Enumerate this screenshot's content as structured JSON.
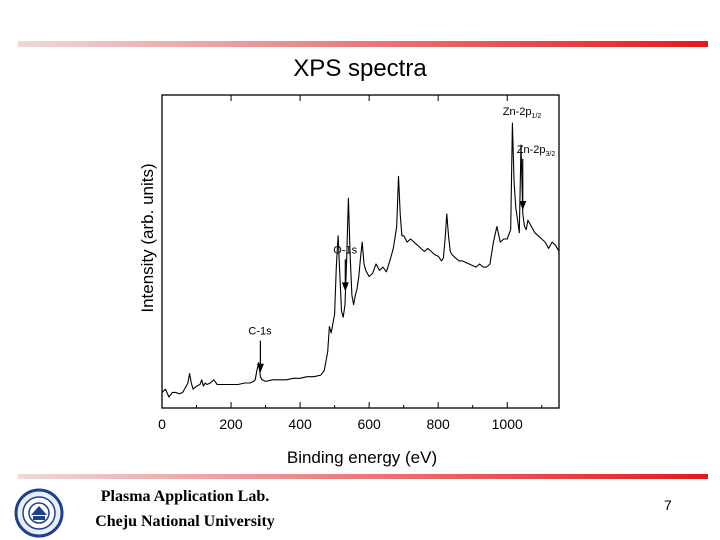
{
  "slide": {
    "title": "XPS spectra",
    "footer_line1": "Plasma Application Lab.",
    "footer_line2": "Cheju National University",
    "page_number": "7",
    "seal_icon": "university-seal-icon",
    "accent_gradient": [
      "#f0d8d8",
      "#e41a1a"
    ]
  },
  "chart_data": {
    "type": "line",
    "title": "",
    "xlabel": "Binding energy (eV)",
    "ylabel": "Intensity (arb. units)",
    "xlim": [
      0,
      1150
    ],
    "ylim": [
      0,
      100
    ],
    "xticks": [
      0,
      200,
      400,
      600,
      800,
      1000
    ],
    "yticks_shown": false,
    "grid": false,
    "series": [
      {
        "x": [
          0,
          10,
          20,
          30,
          40,
          50,
          60,
          70,
          75,
          80,
          85,
          90,
          95,
          100,
          110,
          115,
          120,
          125,
          130,
          140,
          150,
          160,
          180,
          200,
          220,
          240,
          255,
          265,
          270,
          275,
          280,
          285,
          290,
          300,
          320,
          340,
          360,
          380,
          400,
          420,
          440,
          460,
          470,
          480,
          485,
          490,
          500,
          505,
          510,
          515,
          520,
          525,
          530,
          535,
          540,
          545,
          550,
          555,
          560,
          565,
          570,
          575,
          580,
          585,
          590,
          600,
          610,
          620,
          630,
          640,
          650,
          660,
          670,
          680,
          685,
          690,
          695,
          700,
          710,
          720,
          730,
          740,
          750,
          760,
          770,
          780,
          790,
          800,
          810,
          815,
          820,
          825,
          830,
          835,
          840,
          850,
          860,
          870,
          880,
          890,
          900,
          910,
          920,
          930,
          940,
          950,
          960,
          970,
          980,
          990,
          1000,
          1010,
          1015,
          1020,
          1025,
          1030,
          1035,
          1040,
          1045,
          1050,
          1055,
          1060,
          1070,
          1080,
          1090,
          1100,
          1110,
          1120,
          1130,
          1140,
          1150
        ],
        "y": [
          5,
          6,
          3.5,
          5,
          5,
          4.5,
          5,
          7,
          8,
          11,
          8,
          6,
          6.5,
          7,
          7.5,
          9,
          7,
          8,
          7.5,
          8,
          9,
          7.5,
          7.5,
          7.5,
          7.5,
          8,
          8,
          8.5,
          9,
          12,
          14.5,
          10,
          9,
          8.5,
          9,
          9,
          9,
          9.5,
          9.5,
          10,
          10,
          10.5,
          12,
          18,
          26,
          24,
          30,
          45,
          55,
          43,
          31,
          29,
          33,
          48,
          67,
          49,
          36,
          33,
          36,
          38,
          42,
          48,
          53,
          46,
          44,
          42,
          43,
          46,
          44,
          45,
          43.5,
          47,
          51,
          58,
          74,
          62,
          55,
          55,
          53,
          54,
          53,
          52,
          51,
          50,
          51,
          50,
          49,
          48.5,
          47,
          48,
          54,
          62,
          55,
          50,
          49,
          48,
          47,
          47,
          46.5,
          46,
          45.5,
          45,
          46,
          45,
          45,
          46,
          53,
          58,
          53,
          54,
          54,
          57,
          91,
          72,
          64,
          60,
          56,
          84,
          62,
          58,
          57,
          60,
          58,
          56,
          55,
          54,
          53,
          51,
          53,
          52,
          50
        ]
      }
    ],
    "annotations": [
      {
        "label": "C-1s",
        "x": 285
      },
      {
        "label": "O-1s",
        "x": 531
      },
      {
        "label": "Zn-2p",
        "sub": "1/2",
        "x": 1022
      },
      {
        "label": "Zn-2p",
        "sub": "3/2",
        "x": 1045
      }
    ]
  }
}
